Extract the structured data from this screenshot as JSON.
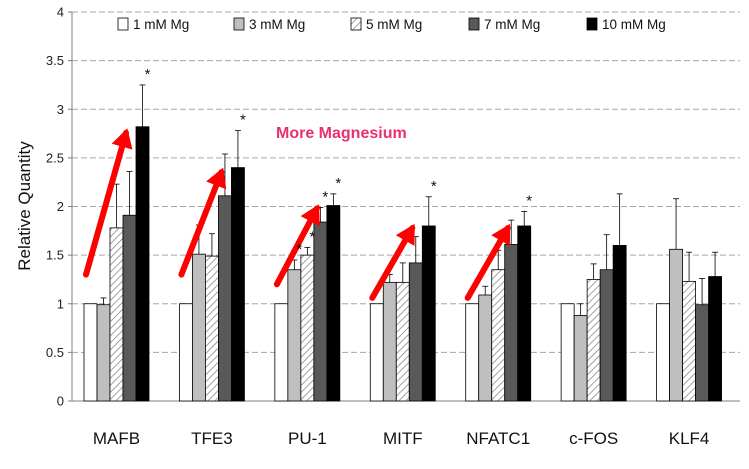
{
  "chart_data": {
    "type": "bar",
    "title": "",
    "xlabel": "",
    "ylabel": "Relative Quantity",
    "ylim": [
      0,
      4
    ],
    "yticks": [
      "0",
      "0.5",
      "1",
      "1.5",
      "2",
      "2.5",
      "3",
      "3.5",
      "4"
    ],
    "grid": true,
    "legend_position": "top",
    "categories": [
      "MAFB",
      "TFE3",
      "PU-1",
      "MITF",
      "NFATC1",
      "c-FOS",
      "KLF4"
    ],
    "series": [
      {
        "name": "1 mM Mg",
        "fill": "#ffffff",
        "pattern": "solid",
        "values": [
          1.0,
          1.0,
          1.0,
          1.0,
          1.0,
          1.0,
          1.0
        ],
        "errors": [
          0,
          0,
          0,
          0,
          0,
          0,
          0
        ],
        "significant": [
          false,
          false,
          false,
          false,
          false,
          false,
          false
        ]
      },
      {
        "name": "3 mM Mg",
        "fill": "#bfbfbf",
        "pattern": "solid",
        "values": [
          0.99,
          1.51,
          1.35,
          1.22,
          1.09,
          0.88,
          1.56
        ],
        "errors": [
          0.07,
          0.3,
          0.1,
          0.08,
          0.09,
          0.12,
          0.52
        ],
        "significant": [
          false,
          false,
          true,
          false,
          false,
          false,
          false
        ]
      },
      {
        "name": "5 mM Mg",
        "fill": "#ffffff",
        "pattern": "hatch",
        "values": [
          1.78,
          1.49,
          1.5,
          1.22,
          1.35,
          1.25,
          1.23
        ],
        "errors": [
          0.45,
          0.23,
          0.08,
          0.2,
          0.2,
          0.16,
          0.3
        ],
        "significant": [
          false,
          false,
          true,
          false,
          false,
          false,
          false
        ]
      },
      {
        "name": "7 mM Mg",
        "fill": "#595959",
        "pattern": "solid",
        "values": [
          1.91,
          2.11,
          1.84,
          1.42,
          1.61,
          1.35,
          0.99
        ],
        "errors": [
          0.45,
          0.43,
          0.15,
          0.27,
          0.25,
          0.36,
          0.27
        ],
        "significant": [
          false,
          false,
          true,
          false,
          false,
          false,
          false
        ]
      },
      {
        "name": "10 mM Mg",
        "fill": "#000000",
        "pattern": "solid",
        "values": [
          2.82,
          2.4,
          2.01,
          1.8,
          1.8,
          1.6,
          1.28
        ],
        "errors": [
          0.43,
          0.38,
          0.12,
          0.3,
          0.15,
          0.53,
          0.25
        ],
        "significant": [
          true,
          true,
          true,
          true,
          true,
          false,
          false
        ]
      }
    ],
    "annotations": [
      {
        "text": "More Magnesium",
        "color": "#e8316b"
      }
    ],
    "arrow_color": "#ff0000",
    "significance_marker": "*"
  }
}
